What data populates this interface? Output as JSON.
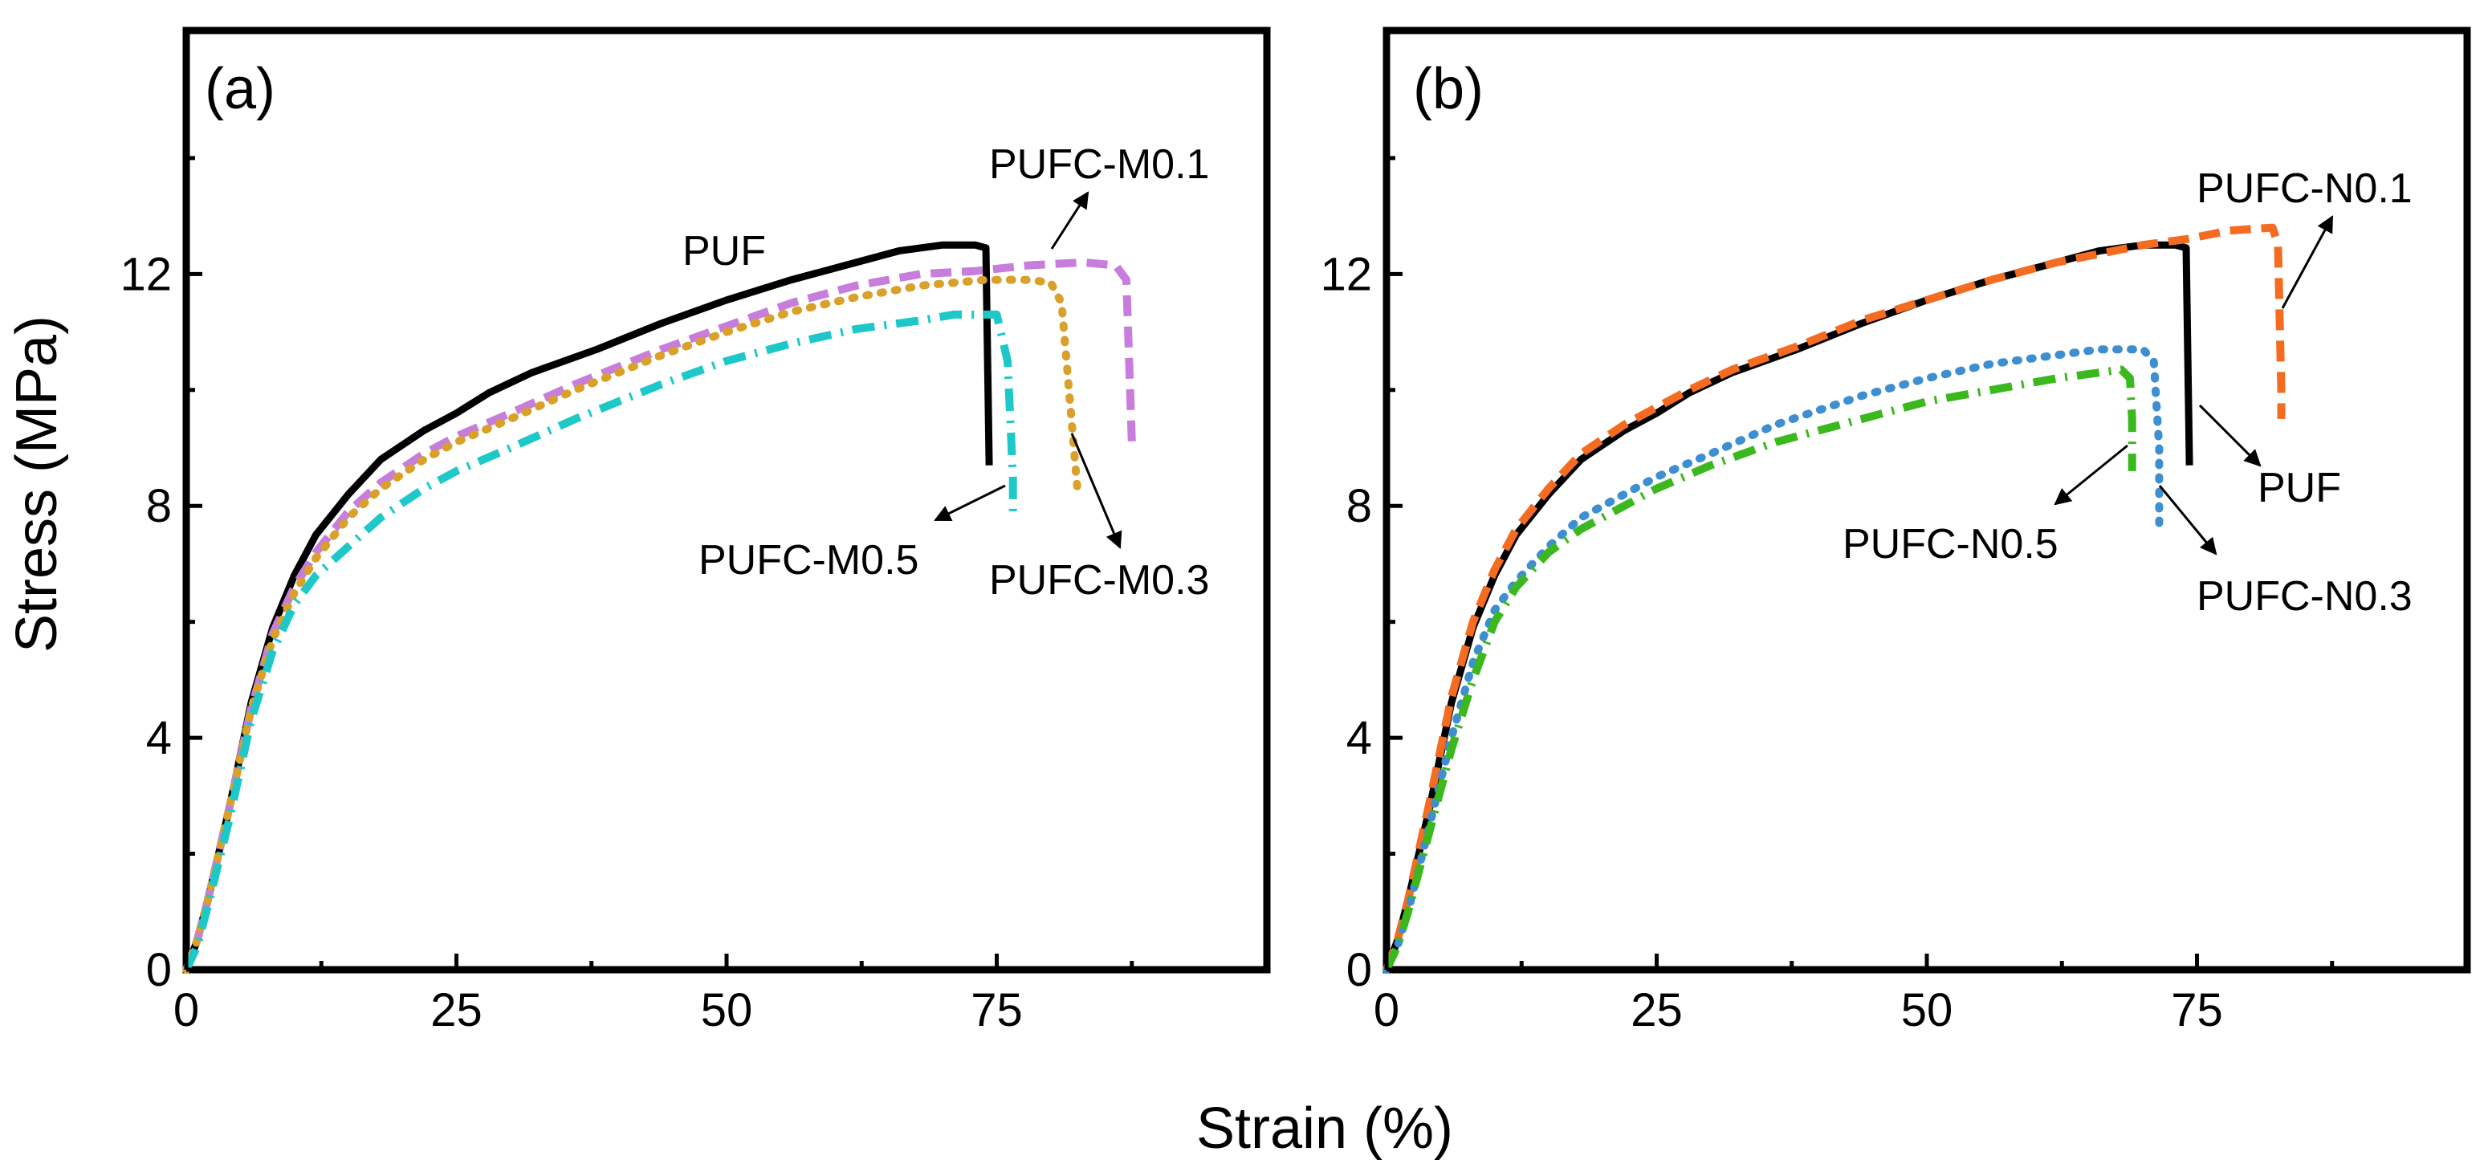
{
  "figure": {
    "ylabel": "Stress (MPa)",
    "xlabel": "Strain (%)"
  },
  "chart_data": [
    {
      "type": "line",
      "panel": "(a)",
      "xlabel": "Strain (%)",
      "ylabel": "Stress (MPa)",
      "xlim": [
        0,
        100
      ],
      "ylim": [
        0,
        16.2
      ],
      "xticks": [
        0,
        25,
        50,
        75
      ],
      "yticks": [
        0,
        4,
        8,
        12
      ],
      "grid": false,
      "legend": "none",
      "series": [
        {
          "name": "PUF",
          "color": "#000000",
          "style": "solid",
          "points": [
            [
              0,
              0
            ],
            [
              1,
              0.5
            ],
            [
              2,
              1.2
            ],
            [
              4,
              2.8
            ],
            [
              6,
              4.6
            ],
            [
              8,
              5.9
            ],
            [
              10,
              6.8
            ],
            [
              12,
              7.5
            ],
            [
              15,
              8.2
            ],
            [
              18,
              8.8
            ],
            [
              22,
              9.3
            ],
            [
              25,
              9.6
            ],
            [
              28,
              9.95
            ],
            [
              32,
              10.3
            ],
            [
              38,
              10.7
            ],
            [
              44,
              11.15
            ],
            [
              50,
              11.55
            ],
            [
              56,
              11.9
            ],
            [
              62,
              12.2
            ],
            [
              66,
              12.4
            ],
            [
              70,
              12.5
            ],
            [
              73,
              12.5
            ],
            [
              74,
              12.45
            ],
            [
              74.3,
              8.7
            ]
          ]
        },
        {
          "name": "PUFC-M0.1",
          "color": "#c77ddb",
          "style": "dashed",
          "points": [
            [
              0,
              0
            ],
            [
              1,
              0.5
            ],
            [
              2,
              1.2
            ],
            [
              4,
              2.8
            ],
            [
              6,
              4.5
            ],
            [
              8,
              5.8
            ],
            [
              10,
              6.6
            ],
            [
              12,
              7.2
            ],
            [
              15,
              7.9
            ],
            [
              18,
              8.4
            ],
            [
              22,
              8.9
            ],
            [
              25,
              9.2
            ],
            [
              30,
              9.6
            ],
            [
              36,
              10.1
            ],
            [
              44,
              10.7
            ],
            [
              50,
              11.1
            ],
            [
              56,
              11.5
            ],
            [
              62,
              11.8
            ],
            [
              68,
              12.0
            ],
            [
              73,
              12.05
            ],
            [
              78,
              12.15
            ],
            [
              83,
              12.2
            ],
            [
              86,
              12.15
            ],
            [
              87,
              11.9
            ],
            [
              87.5,
              9.1
            ]
          ]
        },
        {
          "name": "PUFC-M0.3",
          "color": "#d9a02a",
          "style": "dotted",
          "points": [
            [
              0,
              0
            ],
            [
              1,
              0.5
            ],
            [
              2,
              1.2
            ],
            [
              4,
              2.8
            ],
            [
              6,
              4.5
            ],
            [
              8,
              5.7
            ],
            [
              10,
              6.5
            ],
            [
              12,
              7.1
            ],
            [
              15,
              7.8
            ],
            [
              18,
              8.3
            ],
            [
              22,
              8.8
            ],
            [
              25,
              9.1
            ],
            [
              30,
              9.5
            ],
            [
              36,
              10.0
            ],
            [
              44,
              10.6
            ],
            [
              50,
              11.0
            ],
            [
              56,
              11.35
            ],
            [
              62,
              11.6
            ],
            [
              68,
              11.8
            ],
            [
              74,
              11.9
            ],
            [
              78,
              11.9
            ],
            [
              80,
              11.85
            ],
            [
              81,
              11.5
            ],
            [
              82.5,
              8.2
            ]
          ]
        },
        {
          "name": "PUFC-M0.5",
          "color": "#1fc8c8",
          "style": "dashdot",
          "points": [
            [
              0,
              0
            ],
            [
              1,
              0.4
            ],
            [
              2,
              1.1
            ],
            [
              4,
              2.6
            ],
            [
              6,
              4.3
            ],
            [
              8,
              5.5
            ],
            [
              10,
              6.3
            ],
            [
              12,
              6.8
            ],
            [
              15,
              7.3
            ],
            [
              18,
              7.8
            ],
            [
              22,
              8.3
            ],
            [
              25,
              8.6
            ],
            [
              30,
              9.0
            ],
            [
              36,
              9.5
            ],
            [
              44,
              10.1
            ],
            [
              50,
              10.5
            ],
            [
              56,
              10.8
            ],
            [
              62,
              11.05
            ],
            [
              68,
              11.2
            ],
            [
              71,
              11.3
            ],
            [
              75,
              11.3
            ],
            [
              76,
              10.5
            ],
            [
              76.5,
              8.5
            ],
            [
              76.5,
              7.9
            ]
          ]
        }
      ],
      "annotations": [
        {
          "text": "PUF"
        },
        {
          "text": "PUFC-M0.1"
        },
        {
          "text": "PUFC-M0.5"
        },
        {
          "text": "PUFC-M0.3"
        }
      ]
    },
    {
      "type": "line",
      "panel": "(b)",
      "xlabel": "Strain (%)",
      "ylabel": "Stress (MPa)",
      "xlim": [
        0,
        100
      ],
      "ylim": [
        0,
        16.2
      ],
      "xticks": [
        0,
        25,
        50,
        75
      ],
      "yticks": [
        0,
        4,
        8,
        12
      ],
      "grid": false,
      "legend": "none",
      "series": [
        {
          "name": "PUF",
          "color": "#000000",
          "style": "solid",
          "points": [
            [
              0,
              0
            ],
            [
              1,
              0.5
            ],
            [
              2,
              1.2
            ],
            [
              4,
              2.8
            ],
            [
              6,
              4.6
            ],
            [
              8,
              5.9
            ],
            [
              10,
              6.8
            ],
            [
              12,
              7.5
            ],
            [
              15,
              8.2
            ],
            [
              18,
              8.8
            ],
            [
              22,
              9.3
            ],
            [
              25,
              9.6
            ],
            [
              28,
              9.95
            ],
            [
              32,
              10.3
            ],
            [
              38,
              10.7
            ],
            [
              44,
              11.15
            ],
            [
              50,
              11.55
            ],
            [
              56,
              11.9
            ],
            [
              62,
              12.2
            ],
            [
              66,
              12.4
            ],
            [
              70,
              12.5
            ],
            [
              73,
              12.5
            ],
            [
              74,
              12.45
            ],
            [
              74.3,
              8.7
            ]
          ]
        },
        {
          "name": "PUFC-N0.1",
          "color": "#f36c21",
          "style": "dashed",
          "points": [
            [
              0,
              0
            ],
            [
              1,
              0.5
            ],
            [
              2,
              1.2
            ],
            [
              4,
              2.9
            ],
            [
              6,
              4.7
            ],
            [
              8,
              6.0
            ],
            [
              10,
              6.9
            ],
            [
              12,
              7.6
            ],
            [
              15,
              8.3
            ],
            [
              18,
              8.9
            ],
            [
              22,
              9.4
            ],
            [
              25,
              9.7
            ],
            [
              28,
              10.0
            ],
            [
              32,
              10.35
            ],
            [
              38,
              10.75
            ],
            [
              44,
              11.2
            ],
            [
              50,
              11.55
            ],
            [
              56,
              11.9
            ],
            [
              62,
              12.2
            ],
            [
              66,
              12.35
            ],
            [
              70,
              12.5
            ],
            [
              74,
              12.6
            ],
            [
              78,
              12.75
            ],
            [
              82,
              12.8
            ],
            [
              82.5,
              12.5
            ],
            [
              82.8,
              10.0
            ],
            [
              82.8,
              9.5
            ]
          ]
        },
        {
          "name": "PUFC-N0.3",
          "color": "#3d8fd1",
          "style": "dotted",
          "points": [
            [
              0,
              0
            ],
            [
              1,
              0.4
            ],
            [
              2,
              1.0
            ],
            [
              4,
              2.5
            ],
            [
              6,
              4.0
            ],
            [
              8,
              5.3
            ],
            [
              10,
              6.2
            ],
            [
              12,
              6.7
            ],
            [
              15,
              7.3
            ],
            [
              18,
              7.8
            ],
            [
              22,
              8.2
            ],
            [
              25,
              8.5
            ],
            [
              30,
              8.9
            ],
            [
              36,
              9.4
            ],
            [
              44,
              9.9
            ],
            [
              50,
              10.2
            ],
            [
              56,
              10.45
            ],
            [
              62,
              10.6
            ],
            [
              66,
              10.7
            ],
            [
              70,
              10.7
            ],
            [
              71,
              10.5
            ],
            [
              71.5,
              9.0
            ],
            [
              71.5,
              7.7
            ]
          ]
        },
        {
          "name": "PUFC-N0.5",
          "color": "#3cb81f",
          "style": "dashdot",
          "points": [
            [
              0,
              0
            ],
            [
              1,
              0.4
            ],
            [
              2,
              1.0
            ],
            [
              4,
              2.4
            ],
            [
              6,
              3.8
            ],
            [
              8,
              5.0
            ],
            [
              10,
              6.0
            ],
            [
              12,
              6.6
            ],
            [
              15,
              7.2
            ],
            [
              18,
              7.6
            ],
            [
              22,
              8.0
            ],
            [
              25,
              8.3
            ],
            [
              30,
              8.7
            ],
            [
              36,
              9.1
            ],
            [
              44,
              9.5
            ],
            [
              50,
              9.8
            ],
            [
              56,
              10.0
            ],
            [
              62,
              10.2
            ],
            [
              66,
              10.3
            ],
            [
              68,
              10.35
            ],
            [
              68.8,
              10.2
            ],
            [
              69,
              9.5
            ],
            [
              69,
              8.6
            ]
          ]
        }
      ],
      "annotations": [
        {
          "text": "PUFC-N0.1"
        },
        {
          "text": "PUF"
        },
        {
          "text": "PUFC-N0.5"
        },
        {
          "text": "PUFC-N0.3"
        }
      ]
    }
  ]
}
